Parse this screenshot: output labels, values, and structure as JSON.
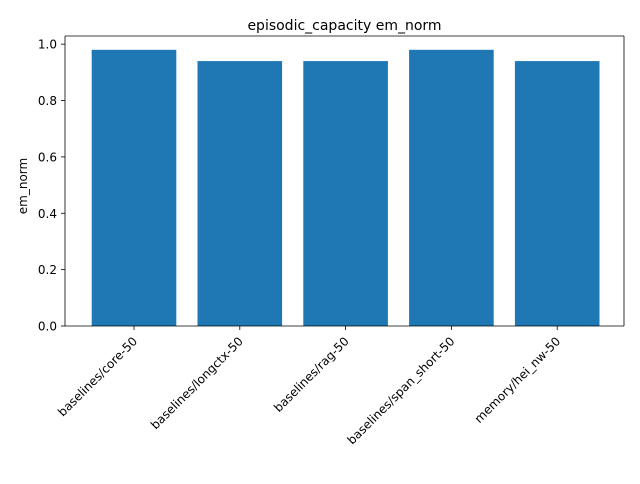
{
  "chart_data": {
    "type": "bar",
    "title": "episodic_capacity em_norm",
    "xlabel": "",
    "ylabel": "em_norm",
    "categories": [
      "baselines/core-50",
      "baselines/longctx-50",
      "baselines/rag-50",
      "baselines/span_short-50",
      "memory/hei_nw-50"
    ],
    "values": [
      0.98,
      0.94,
      0.94,
      0.98,
      0.94
    ],
    "ylim": [
      0,
      1.029
    ],
    "yticks": [
      0.0,
      0.2,
      0.4,
      0.6,
      0.8,
      1.0
    ],
    "ytick_labels": [
      "0.0",
      "0.2",
      "0.4",
      "0.6",
      "0.8",
      "1.0"
    ],
    "grid": false,
    "bar_color": "#1f77b4"
  }
}
